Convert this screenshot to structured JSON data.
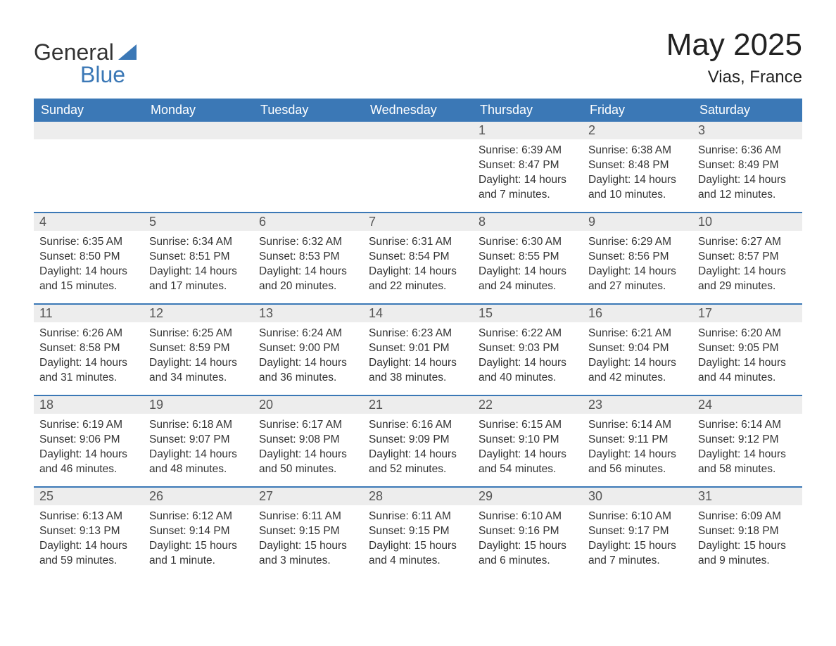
{
  "brand": {
    "name_part1": "General",
    "name_part2": "Blue"
  },
  "title": "May 2025",
  "location": "Vias, France",
  "accent_color": "#3b78b6",
  "daynum_bg": "#ededed",
  "text_color": "#333333",
  "weekdays": [
    "Sunday",
    "Monday",
    "Tuesday",
    "Wednesday",
    "Thursday",
    "Friday",
    "Saturday"
  ],
  "weeks": [
    [
      null,
      null,
      null,
      null,
      {
        "day": "1",
        "sunrise": "Sunrise: 6:39 AM",
        "sunset": "Sunset: 8:47 PM",
        "daylight": "Daylight: 14 hours and 7 minutes."
      },
      {
        "day": "2",
        "sunrise": "Sunrise: 6:38 AM",
        "sunset": "Sunset: 8:48 PM",
        "daylight": "Daylight: 14 hours and 10 minutes."
      },
      {
        "day": "3",
        "sunrise": "Sunrise: 6:36 AM",
        "sunset": "Sunset: 8:49 PM",
        "daylight": "Daylight: 14 hours and 12 minutes."
      }
    ],
    [
      {
        "day": "4",
        "sunrise": "Sunrise: 6:35 AM",
        "sunset": "Sunset: 8:50 PM",
        "daylight": "Daylight: 14 hours and 15 minutes."
      },
      {
        "day": "5",
        "sunrise": "Sunrise: 6:34 AM",
        "sunset": "Sunset: 8:51 PM",
        "daylight": "Daylight: 14 hours and 17 minutes."
      },
      {
        "day": "6",
        "sunrise": "Sunrise: 6:32 AM",
        "sunset": "Sunset: 8:53 PM",
        "daylight": "Daylight: 14 hours and 20 minutes."
      },
      {
        "day": "7",
        "sunrise": "Sunrise: 6:31 AM",
        "sunset": "Sunset: 8:54 PM",
        "daylight": "Daylight: 14 hours and 22 minutes."
      },
      {
        "day": "8",
        "sunrise": "Sunrise: 6:30 AM",
        "sunset": "Sunset: 8:55 PM",
        "daylight": "Daylight: 14 hours and 24 minutes."
      },
      {
        "day": "9",
        "sunrise": "Sunrise: 6:29 AM",
        "sunset": "Sunset: 8:56 PM",
        "daylight": "Daylight: 14 hours and 27 minutes."
      },
      {
        "day": "10",
        "sunrise": "Sunrise: 6:27 AM",
        "sunset": "Sunset: 8:57 PM",
        "daylight": "Daylight: 14 hours and 29 minutes."
      }
    ],
    [
      {
        "day": "11",
        "sunrise": "Sunrise: 6:26 AM",
        "sunset": "Sunset: 8:58 PM",
        "daylight": "Daylight: 14 hours and 31 minutes."
      },
      {
        "day": "12",
        "sunrise": "Sunrise: 6:25 AM",
        "sunset": "Sunset: 8:59 PM",
        "daylight": "Daylight: 14 hours and 34 minutes."
      },
      {
        "day": "13",
        "sunrise": "Sunrise: 6:24 AM",
        "sunset": "Sunset: 9:00 PM",
        "daylight": "Daylight: 14 hours and 36 minutes."
      },
      {
        "day": "14",
        "sunrise": "Sunrise: 6:23 AM",
        "sunset": "Sunset: 9:01 PM",
        "daylight": "Daylight: 14 hours and 38 minutes."
      },
      {
        "day": "15",
        "sunrise": "Sunrise: 6:22 AM",
        "sunset": "Sunset: 9:03 PM",
        "daylight": "Daylight: 14 hours and 40 minutes."
      },
      {
        "day": "16",
        "sunrise": "Sunrise: 6:21 AM",
        "sunset": "Sunset: 9:04 PM",
        "daylight": "Daylight: 14 hours and 42 minutes."
      },
      {
        "day": "17",
        "sunrise": "Sunrise: 6:20 AM",
        "sunset": "Sunset: 9:05 PM",
        "daylight": "Daylight: 14 hours and 44 minutes."
      }
    ],
    [
      {
        "day": "18",
        "sunrise": "Sunrise: 6:19 AM",
        "sunset": "Sunset: 9:06 PM",
        "daylight": "Daylight: 14 hours and 46 minutes."
      },
      {
        "day": "19",
        "sunrise": "Sunrise: 6:18 AM",
        "sunset": "Sunset: 9:07 PM",
        "daylight": "Daylight: 14 hours and 48 minutes."
      },
      {
        "day": "20",
        "sunrise": "Sunrise: 6:17 AM",
        "sunset": "Sunset: 9:08 PM",
        "daylight": "Daylight: 14 hours and 50 minutes."
      },
      {
        "day": "21",
        "sunrise": "Sunrise: 6:16 AM",
        "sunset": "Sunset: 9:09 PM",
        "daylight": "Daylight: 14 hours and 52 minutes."
      },
      {
        "day": "22",
        "sunrise": "Sunrise: 6:15 AM",
        "sunset": "Sunset: 9:10 PM",
        "daylight": "Daylight: 14 hours and 54 minutes."
      },
      {
        "day": "23",
        "sunrise": "Sunrise: 6:14 AM",
        "sunset": "Sunset: 9:11 PM",
        "daylight": "Daylight: 14 hours and 56 minutes."
      },
      {
        "day": "24",
        "sunrise": "Sunrise: 6:14 AM",
        "sunset": "Sunset: 9:12 PM",
        "daylight": "Daylight: 14 hours and 58 minutes."
      }
    ],
    [
      {
        "day": "25",
        "sunrise": "Sunrise: 6:13 AM",
        "sunset": "Sunset: 9:13 PM",
        "daylight": "Daylight: 14 hours and 59 minutes."
      },
      {
        "day": "26",
        "sunrise": "Sunrise: 6:12 AM",
        "sunset": "Sunset: 9:14 PM",
        "daylight": "Daylight: 15 hours and 1 minute."
      },
      {
        "day": "27",
        "sunrise": "Sunrise: 6:11 AM",
        "sunset": "Sunset: 9:15 PM",
        "daylight": "Daylight: 15 hours and 3 minutes."
      },
      {
        "day": "28",
        "sunrise": "Sunrise: 6:11 AM",
        "sunset": "Sunset: 9:15 PM",
        "daylight": "Daylight: 15 hours and 4 minutes."
      },
      {
        "day": "29",
        "sunrise": "Sunrise: 6:10 AM",
        "sunset": "Sunset: 9:16 PM",
        "daylight": "Daylight: 15 hours and 6 minutes."
      },
      {
        "day": "30",
        "sunrise": "Sunrise: 6:10 AM",
        "sunset": "Sunset: 9:17 PM",
        "daylight": "Daylight: 15 hours and 7 minutes."
      },
      {
        "day": "31",
        "sunrise": "Sunrise: 6:09 AM",
        "sunset": "Sunset: 9:18 PM",
        "daylight": "Daylight: 15 hours and 9 minutes."
      }
    ]
  ]
}
